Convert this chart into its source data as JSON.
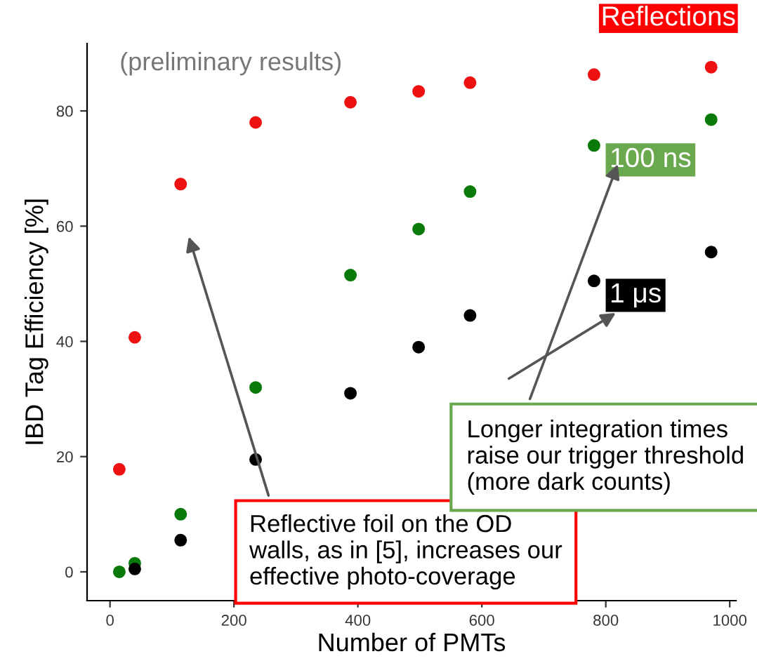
{
  "chart_data": {
    "type": "scatter",
    "xlabel": "Number of PMTs",
    "ylabel": "IBD Tag Efficiency [%]",
    "xlim": [
      -37,
      1010
    ],
    "ylim": [
      -5,
      91.7
    ],
    "xticks": [
      0,
      200,
      400,
      600,
      800,
      1000
    ],
    "yticks": [
      0,
      20,
      40,
      60,
      80
    ],
    "grid": false,
    "marker": "circle",
    "series": [
      {
        "name": "Reflections",
        "color": "#ee1111",
        "x": [
          15,
          40,
          114,
          235,
          388,
          498,
          581,
          781,
          970
        ],
        "values": [
          17.8,
          40.7,
          67.3,
          78,
          81.5,
          83.4,
          84.9,
          86.3,
          87.6
        ]
      },
      {
        "name": "100 ns",
        "color": "#0a7a0a",
        "x": [
          15,
          40,
          114,
          235,
          388,
          498,
          581,
          781,
          970
        ],
        "values": [
          0,
          1.5,
          10,
          32,
          51.5,
          59.5,
          66,
          74,
          78.5
        ]
      },
      {
        "name": "1 μs",
        "color": "#000000",
        "x": [
          40,
          114,
          235,
          388,
          498,
          581,
          781,
          970
        ],
        "values": [
          0.5,
          5.5,
          19.5,
          31,
          39,
          44.5,
          50.5,
          55.5
        ]
      }
    ],
    "annotations": [
      "(preliminary results)",
      "Reflective foil on the OD\nwalls, as in [5], increases our\neffective photo-coverage",
      "Longer integration times\nraise our trigger threshold\n(more dark counts)"
    ]
  }
}
